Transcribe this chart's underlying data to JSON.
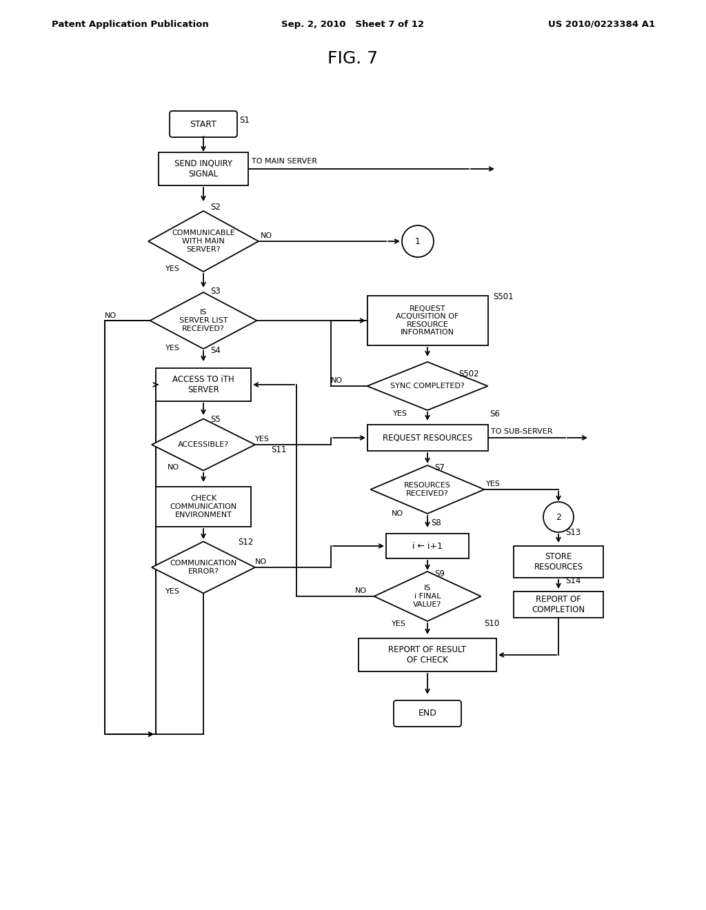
{
  "bg_color": "#ffffff",
  "header_left": "Patent Application Publication",
  "header_mid": "Sep. 2, 2010   Sheet 7 of 12",
  "header_right": "US 2010/0223384 A1",
  "fig_title": "FIG. 7"
}
